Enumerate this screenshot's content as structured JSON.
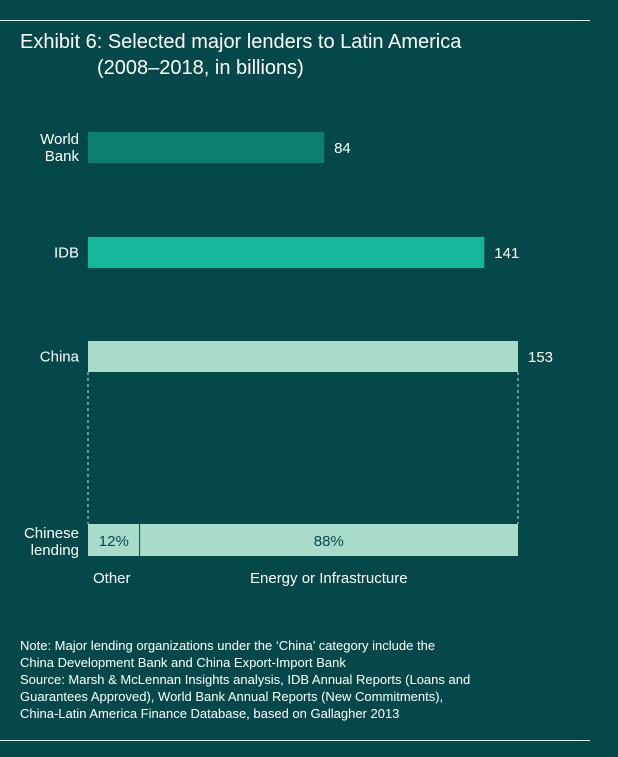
{
  "title": {
    "line1": "Exhibit 6: Selected major lenders to Latin America",
    "line2": "(2008–2018, in billions)"
  },
  "colors": {
    "background": "#05484a",
    "world_bank": "#0b7f70",
    "idb": "#15b89a",
    "china": "#a8dbc9",
    "text": "#ffffff",
    "breakdown_text": "#05484a"
  },
  "chart_data": {
    "type": "bar",
    "orientation": "horizontal",
    "categories": [
      {
        "label_lines": [
          "World",
          "Bank"
        ],
        "value": 84,
        "value_label": "84"
      },
      {
        "label_lines": [
          "IDB"
        ],
        "value": 141,
        "value_label": "141"
      },
      {
        "label_lines": [
          "China"
        ],
        "value": 153,
        "value_label": "153"
      }
    ],
    "breakdown": {
      "label_lines": [
        "Chinese",
        "lending"
      ],
      "parent": "China",
      "segments": [
        {
          "name": "Other",
          "percent": 12,
          "value_label": "12%"
        },
        {
          "name": "Energy or Infrastructure",
          "percent": 88,
          "value_label": "88%"
        }
      ]
    },
    "xlim": [
      0,
      153
    ],
    "grid": false,
    "legend": "none"
  },
  "notes": [
    "Note: Major lending organizations under the ‘China’ category include the",
    "China Development Bank and China Export-Import Bank",
    "Source: Marsh & McLennan Insights analysis, IDB Annual Reports (Loans and",
    "Guarantees Approved), World Bank Annual Reports (New Commitments),",
    "China-Latin America Finance Database, based on Gallagher 2013"
  ]
}
